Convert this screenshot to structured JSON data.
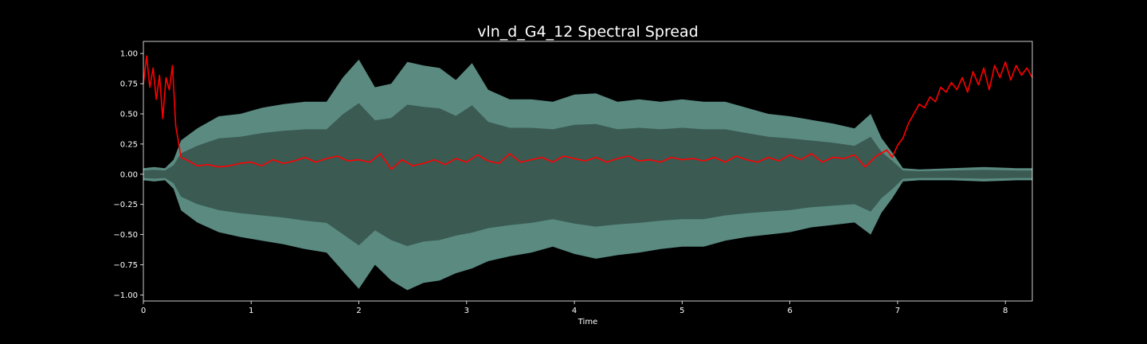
{
  "chart_data": {
    "type": "line",
    "title": "vln_d_G4_12 Spectral Spread",
    "xlabel": "Time",
    "ylabel": "",
    "xlim": [
      0,
      8.25
    ],
    "ylim": [
      -1.05,
      1.1
    ],
    "x_ticks": [
      0,
      1,
      2,
      3,
      4,
      5,
      6,
      7,
      8
    ],
    "y_ticks": [
      1.0,
      0.75,
      0.5,
      0.25,
      0.0,
      -0.25,
      -0.5,
      -0.75,
      -1.0
    ],
    "x_tick_labels": [
      "0",
      "1",
      "2",
      "3",
      "4",
      "5",
      "6",
      "7",
      "8"
    ],
    "y_tick_labels": [
      "1.00",
      "0.75",
      "0.50",
      "0.25",
      "0.00",
      "−0.25",
      "−0.50",
      "−0.75",
      "−1.00"
    ],
    "grid": false,
    "legend": "none",
    "colors": {
      "background": "#000000",
      "axes_frame": "#ffffff",
      "waveform_outer": "#5a8a80",
      "waveform_inner": "#3a5a52",
      "spread_line": "#ff0000"
    },
    "series": [
      {
        "kind": "waveform-envelope",
        "x": [
          0,
          0.1,
          0.2,
          0.28,
          0.35,
          0.5,
          0.7,
          0.9,
          1.1,
          1.3,
          1.5,
          1.7,
          1.85,
          2.0,
          2.15,
          2.3,
          2.45,
          2.6,
          2.75,
          2.9,
          3.05,
          3.2,
          3.4,
          3.6,
          3.8,
          4.0,
          4.2,
          4.4,
          4.6,
          4.8,
          5.0,
          5.2,
          5.4,
          5.6,
          5.8,
          6.0,
          6.2,
          6.4,
          6.6,
          6.75,
          6.85,
          6.95,
          7.05,
          7.2,
          7.5,
          7.8,
          8.1,
          8.25
        ],
        "upper": [
          0.05,
          0.06,
          0.05,
          0.12,
          0.28,
          0.38,
          0.48,
          0.5,
          0.55,
          0.58,
          0.6,
          0.6,
          0.8,
          0.95,
          0.72,
          0.75,
          0.93,
          0.9,
          0.88,
          0.78,
          0.92,
          0.7,
          0.62,
          0.62,
          0.6,
          0.66,
          0.67,
          0.6,
          0.62,
          0.6,
          0.62,
          0.6,
          0.6,
          0.55,
          0.5,
          0.48,
          0.45,
          0.42,
          0.38,
          0.5,
          0.3,
          0.18,
          0.05,
          0.04,
          0.05,
          0.06,
          0.05,
          0.05
        ],
        "lower": [
          -0.05,
          -0.06,
          -0.05,
          -0.12,
          -0.3,
          -0.4,
          -0.48,
          -0.52,
          -0.55,
          -0.58,
          -0.62,
          -0.65,
          -0.8,
          -0.95,
          -0.75,
          -0.88,
          -0.96,
          -0.9,
          -0.88,
          -0.82,
          -0.78,
          -0.72,
          -0.68,
          -0.65,
          -0.6,
          -0.66,
          -0.7,
          -0.67,
          -0.65,
          -0.62,
          -0.6,
          -0.6,
          -0.55,
          -0.52,
          -0.5,
          -0.48,
          -0.44,
          -0.42,
          -0.4,
          -0.5,
          -0.32,
          -0.2,
          -0.06,
          -0.05,
          -0.05,
          -0.06,
          -0.05,
          -0.05
        ]
      },
      {
        "kind": "line",
        "x": [
          0,
          0.03,
          0.06,
          0.09,
          0.12,
          0.15,
          0.18,
          0.21,
          0.24,
          0.27,
          0.3,
          0.35,
          0.4,
          0.5,
          0.6,
          0.7,
          0.8,
          0.9,
          1.0,
          1.1,
          1.2,
          1.3,
          1.4,
          1.5,
          1.6,
          1.7,
          1.8,
          1.9,
          2.0,
          2.1,
          2.2,
          2.3,
          2.4,
          2.5,
          2.6,
          2.7,
          2.8,
          2.9,
          3.0,
          3.1,
          3.2,
          3.3,
          3.4,
          3.5,
          3.6,
          3.7,
          3.8,
          3.9,
          4.0,
          4.1,
          4.2,
          4.3,
          4.4,
          4.5,
          4.6,
          4.7,
          4.8,
          4.9,
          5.0,
          5.1,
          5.2,
          5.3,
          5.4,
          5.5,
          5.6,
          5.7,
          5.8,
          5.9,
          6.0,
          6.1,
          6.2,
          6.3,
          6.4,
          6.5,
          6.6,
          6.7,
          6.8,
          6.9,
          6.95,
          7.0,
          7.05,
          7.1,
          7.15,
          7.2,
          7.25,
          7.3,
          7.35,
          7.4,
          7.45,
          7.5,
          7.55,
          7.6,
          7.65,
          7.7,
          7.75,
          7.8,
          7.85,
          7.9,
          7.95,
          8.0,
          8.05,
          8.1,
          8.15,
          8.2,
          8.25
        ],
        "y": [
          0.75,
          0.98,
          0.72,
          0.88,
          0.62,
          0.82,
          0.46,
          0.8,
          0.7,
          0.9,
          0.4,
          0.14,
          0.12,
          0.07,
          0.08,
          0.06,
          0.07,
          0.09,
          0.1,
          0.07,
          0.12,
          0.09,
          0.11,
          0.14,
          0.1,
          0.13,
          0.15,
          0.11,
          0.12,
          0.1,
          0.17,
          0.04,
          0.12,
          0.07,
          0.09,
          0.12,
          0.08,
          0.13,
          0.1,
          0.16,
          0.11,
          0.09,
          0.17,
          0.1,
          0.12,
          0.14,
          0.1,
          0.15,
          0.13,
          0.11,
          0.14,
          0.1,
          0.13,
          0.15,
          0.11,
          0.12,
          0.1,
          0.14,
          0.12,
          0.13,
          0.11,
          0.14,
          0.1,
          0.15,
          0.12,
          0.1,
          0.14,
          0.11,
          0.16,
          0.12,
          0.17,
          0.1,
          0.14,
          0.13,
          0.16,
          0.06,
          0.15,
          0.2,
          0.14,
          0.24,
          0.3,
          0.42,
          0.5,
          0.58,
          0.55,
          0.64,
          0.6,
          0.72,
          0.68,
          0.76,
          0.7,
          0.8,
          0.68,
          0.85,
          0.74,
          0.88,
          0.7,
          0.9,
          0.8,
          0.93,
          0.78,
          0.9,
          0.82,
          0.88,
          0.8
        ]
      }
    ]
  }
}
